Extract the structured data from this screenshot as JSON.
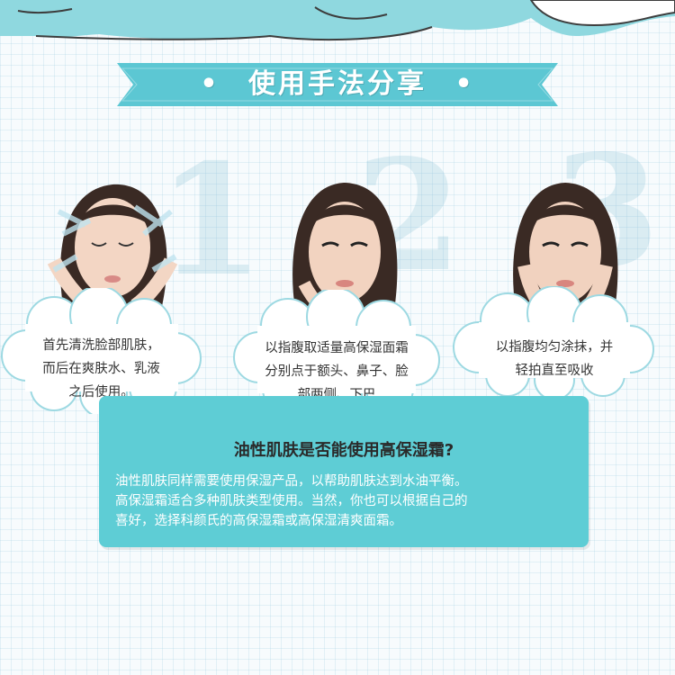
{
  "banner": {
    "title": "使用手法分享",
    "bullet": "•"
  },
  "steps": [
    {
      "number": "1",
      "lines": [
        "首先清洗脸部肌肤，",
        "而后在爽肤水、乳液",
        "之后使用。"
      ]
    },
    {
      "number": "2",
      "lines": [
        "以指腹取适量高保湿面霜",
        "分别点于额头、鼻子、脸",
        "部两侧、下巴"
      ]
    },
    {
      "number": "3",
      "lines": [
        "以指腹均匀涂抹，并",
        "轻拍直至吸收"
      ]
    }
  ],
  "info": {
    "title": "油性肌肤是否能使用高保湿霜?",
    "lines": [
      "油性肌肤同样需要使用保湿产品，以帮助肌肤达到水油平衡。",
      "高保湿霜适合多种肌肤类型使用。当然，你也可以根据自己的",
      "喜好，选择科颜氏的高保湿霜或高保湿清爽面霜。"
    ]
  },
  "colors": {
    "teal": "#5ecdd5",
    "banner_teal": "#5cc7d3",
    "dark_text": "#2a2a2a"
  }
}
